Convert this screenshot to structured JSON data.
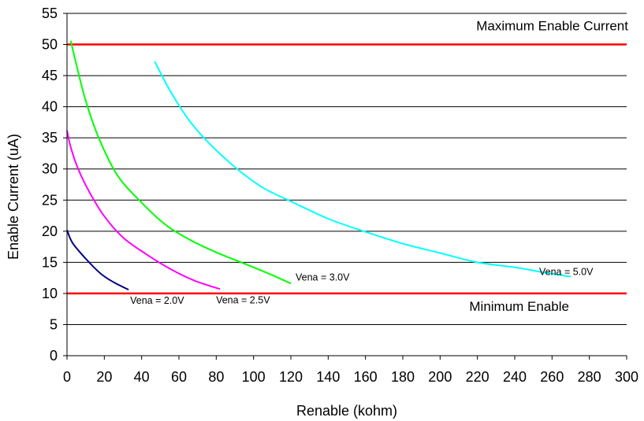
{
  "chart_data": {
    "type": "line",
    "xlabel": "Renable (kohm)",
    "ylabel": "Enable Current (uA)",
    "xlim": [
      0,
      300
    ],
    "ylim": [
      0,
      55
    ],
    "xticks": [
      0,
      20,
      40,
      60,
      80,
      100,
      120,
      140,
      160,
      180,
      200,
      220,
      240,
      260,
      280,
      300
    ],
    "yticks": [
      0,
      5,
      10,
      15,
      20,
      25,
      30,
      35,
      40,
      45,
      50,
      55
    ],
    "grid": "horizontal",
    "reference_lines": [
      {
        "label": "Maximum Enable Current",
        "y": 50,
        "color": "#ff0000"
      },
      {
        "label": "Minimum Enable",
        "y": 10,
        "color": "#ff0000"
      }
    ],
    "series": [
      {
        "name": "Vena = 2.0V",
        "color": "#000080",
        "points": [
          [
            0,
            20.2
          ],
          [
            3,
            18.1
          ],
          [
            10,
            15.6
          ],
          [
            18,
            13.2
          ],
          [
            25,
            11.8
          ],
          [
            33,
            10.6
          ]
        ]
      },
      {
        "name": "Vena = 2.5V",
        "color": "#ff00ff",
        "points": [
          [
            0,
            36.2
          ],
          [
            2,
            33.5
          ],
          [
            6,
            30.0
          ],
          [
            12,
            26.3
          ],
          [
            20,
            22.4
          ],
          [
            30,
            19.0
          ],
          [
            42,
            16.4
          ],
          [
            55,
            14.0
          ],
          [
            68,
            12.1
          ],
          [
            82,
            10.7
          ]
        ]
      },
      {
        "name": "Vena = 3.0V",
        "color": "#00ff00",
        "points": [
          [
            2,
            50.6
          ],
          [
            5,
            46.8
          ],
          [
            10,
            41.0
          ],
          [
            17,
            35.0
          ],
          [
            27,
            29.0
          ],
          [
            40,
            24.6
          ],
          [
            53,
            21.0
          ],
          [
            66,
            18.6
          ],
          [
            80,
            16.6
          ],
          [
            95,
            14.8
          ],
          [
            108,
            13.2
          ],
          [
            120,
            11.6
          ]
        ]
      },
      {
        "name": "Vena = 5.0V",
        "color": "#00ffff",
        "points": [
          [
            47,
            47.3
          ],
          [
            55,
            42.7
          ],
          [
            65,
            38.0
          ],
          [
            75,
            34.5
          ],
          [
            90,
            30.3
          ],
          [
            105,
            27.0
          ],
          [
            120,
            24.8
          ],
          [
            140,
            22.0
          ],
          [
            160,
            19.9
          ],
          [
            180,
            18.0
          ],
          [
            200,
            16.5
          ],
          [
            220,
            15.0
          ],
          [
            240,
            14.2
          ],
          [
            255,
            13.4
          ],
          [
            270,
            12.7
          ]
        ]
      }
    ]
  }
}
